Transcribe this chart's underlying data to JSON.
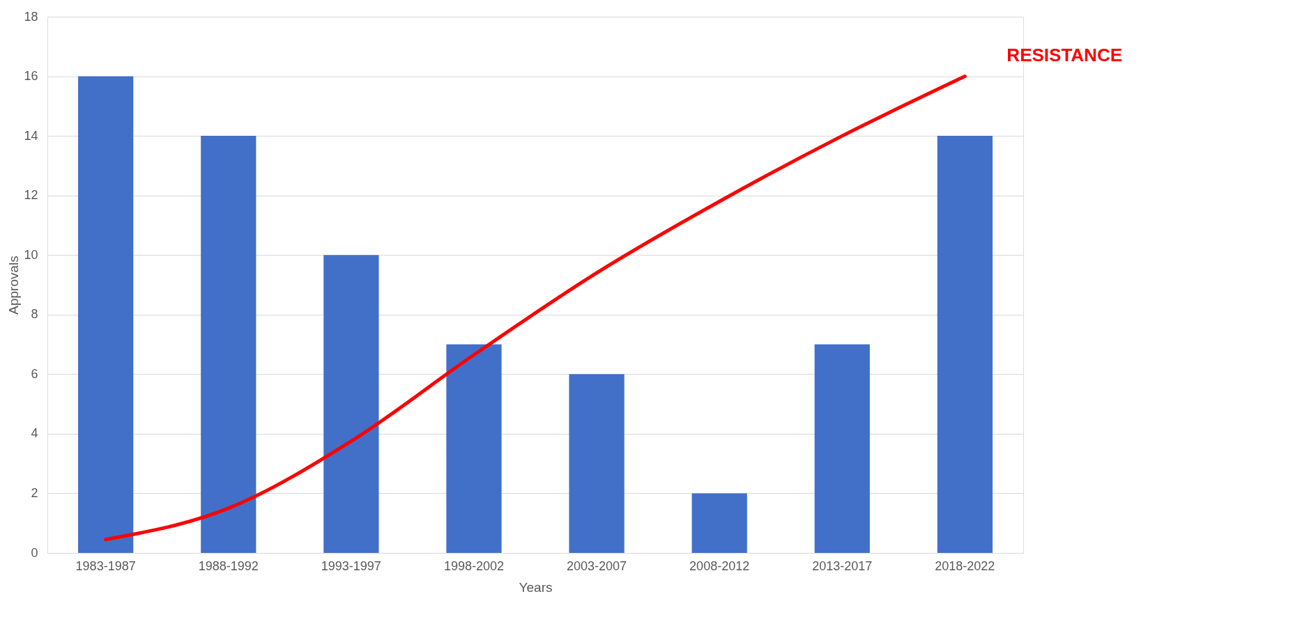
{
  "chart_data": {
    "type": "bar",
    "xlabel": "Years",
    "ylabel": "Approvals",
    "categories": [
      "1983-1987",
      "1988-1992",
      "1993-1997",
      "1998-2002",
      "2003-2007",
      "2008-2012",
      "2013-2017",
      "2018-2022"
    ],
    "series": [
      {
        "color": "#4270c8",
        "values": [
          16,
          14,
          10,
          7,
          6,
          2,
          7,
          14
        ]
      },
      {
        "name": "RESISTANCE",
        "type": "line",
        "color": "#ff0000",
        "values": [
          0.45,
          1.5,
          3.75,
          6.65,
          9.4,
          11.8,
          14,
          16
        ]
      }
    ],
    "ylim": [
      0,
      18
    ],
    "yticks": [
      0,
      2,
      4,
      6,
      8,
      10,
      12,
      14,
      16,
      18
    ],
    "grid": "y",
    "marker": "none",
    "line_style": "solid"
  }
}
